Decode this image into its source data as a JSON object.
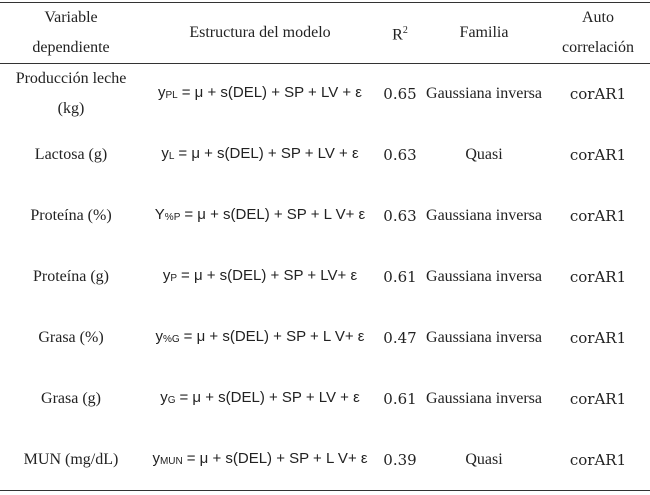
{
  "header": {
    "variable": "Variable dependiente",
    "estructura": "Estructura del modelo",
    "r2": {
      "base": "R",
      "sup": "2"
    },
    "familia": "Familia",
    "auto": "Auto correlación"
  },
  "rows": [
    {
      "variable": "Producción leche (kg)",
      "modelo": {
        "y": "y",
        "sub": "PL",
        "rest": "= μ + s(DEL) + SP + LV + ε"
      },
      "r2": 0.65,
      "familia": "Gaussiana inversa",
      "auto": "corAR1"
    },
    {
      "variable": "Lactosa (g)",
      "modelo": {
        "y": "y",
        "sub": "L",
        "rest": "= μ + s(DEL) + SP + LV + ε"
      },
      "r2": 0.63,
      "familia": "Quasi",
      "auto": "corAR1"
    },
    {
      "variable": "Proteína (%)",
      "modelo": {
        "y": "Y",
        "sub": "%P",
        "rest": "= μ + s(DEL) + SP + L V+ ε"
      },
      "r2": 0.63,
      "familia": "Gaussiana inversa",
      "auto": "corAR1"
    },
    {
      "variable": "Proteína (g)",
      "modelo": {
        "y": "y",
        "sub": "P",
        "rest": "= μ + s(DEL) + SP + LV+ ε"
      },
      "r2": 0.61,
      "familia": "Gaussiana inversa",
      "auto": "corAR1"
    },
    {
      "variable": "Grasa (%)",
      "modelo": {
        "y": "y",
        "sub": "%G",
        "rest": "= μ + s(DEL) + SP + L V+ ε"
      },
      "r2": 0.47,
      "familia": "Gaussiana inversa",
      "auto": "corAR1"
    },
    {
      "variable": "Grasa (g)",
      "modelo": {
        "y": "y",
        "sub": "G",
        "rest": "= μ + s(DEL) + SP + LV + ε"
      },
      "r2": 0.61,
      "familia": "Gaussiana inversa",
      "auto": "corAR1"
    },
    {
      "variable": "MUN (mg/dL)",
      "modelo": {
        "y": "y",
        "sub": "MUN",
        "rest": "= μ + s(DEL) + SP + L V+ ε"
      },
      "r2": 0.39,
      "familia": "Quasi",
      "auto": "corAR1"
    }
  ]
}
